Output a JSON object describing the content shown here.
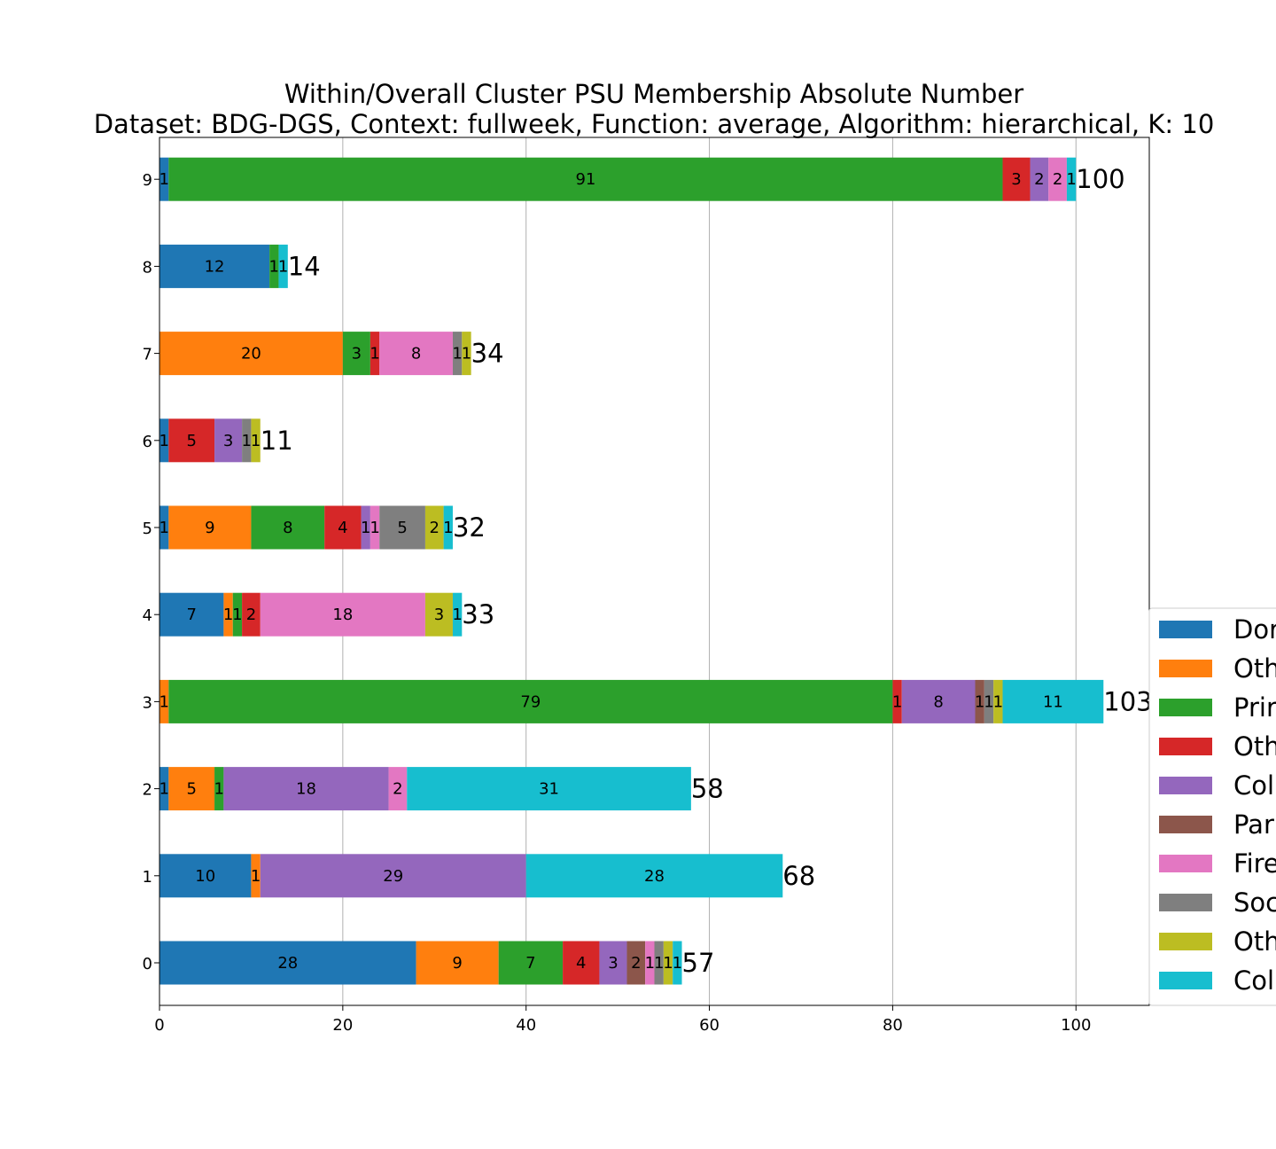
{
  "chart_data": {
    "type": "bar",
    "orientation": "horizontal",
    "stacked": true,
    "title": "Within/Overall Cluster PSU Membership Absolute Number",
    "subtitle": "Dataset: BDG-DGS, Context: fullweek, Function: average, Algorithm: hierarchical, K: 10",
    "xlabel": "",
    "ylabel": "",
    "xlim": [
      0,
      108
    ],
    "xticks": [
      0,
      20,
      40,
      60,
      80,
      100
    ],
    "grid": "vertical",
    "legend_position": "right",
    "categories": [
      "0",
      "1",
      "2",
      "3",
      "4",
      "5",
      "6",
      "7",
      "8",
      "9"
    ],
    "totals": [
      57,
      68,
      58,
      103,
      33,
      32,
      11,
      34,
      14,
      100
    ],
    "series": [
      {
        "name": "Dor",
        "color": "#1f77b4",
        "values": [
          28,
          10,
          1,
          0,
          7,
          1,
          1,
          0,
          12,
          1
        ]
      },
      {
        "name": "Oth",
        "color": "#ff7f0e",
        "values": [
          9,
          1,
          5,
          1,
          1,
          9,
          0,
          20,
          0,
          0
        ]
      },
      {
        "name": "Prir",
        "color": "#2ca02c",
        "values": [
          7,
          0,
          1,
          79,
          1,
          8,
          0,
          3,
          1,
          91
        ]
      },
      {
        "name": "Oth",
        "color": "#d62728",
        "values": [
          4,
          0,
          0,
          1,
          2,
          4,
          5,
          1,
          0,
          3
        ]
      },
      {
        "name": "Col",
        "color": "#9467bd",
        "values": [
          3,
          29,
          18,
          8,
          0,
          1,
          3,
          0,
          0,
          2
        ]
      },
      {
        "name": "Par",
        "color": "#8c564b",
        "values": [
          2,
          0,
          0,
          1,
          0,
          0,
          0,
          0,
          0,
          0
        ]
      },
      {
        "name": "Fire",
        "color": "#e377c2",
        "values": [
          1,
          0,
          2,
          0,
          18,
          1,
          0,
          8,
          0,
          2
        ]
      },
      {
        "name": "Soc",
        "color": "#7f7f7f",
        "values": [
          1,
          0,
          0,
          1,
          0,
          5,
          1,
          1,
          0,
          0
        ]
      },
      {
        "name": "Oth",
        "color": "#bcbd22",
        "values": [
          1,
          0,
          0,
          1,
          3,
          2,
          1,
          1,
          0,
          0
        ]
      },
      {
        "name": "Col",
        "color": "#17becf",
        "values": [
          1,
          28,
          31,
          11,
          1,
          1,
          0,
          0,
          1,
          1
        ]
      }
    ]
  }
}
